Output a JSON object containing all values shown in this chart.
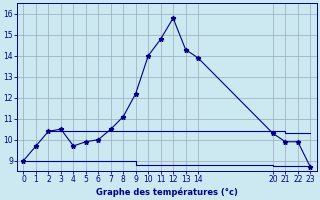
{
  "xlabel": "Graphe des températures (°c)",
  "bg_color": "#cce8f0",
  "grid_color": "#99aabb",
  "line_color": "#000088",
  "ylim": [
    8.5,
    16.5
  ],
  "xlim": [
    -0.5,
    23.5
  ],
  "yticks": [
    9,
    10,
    11,
    12,
    13,
    14,
    15,
    16
  ],
  "xticks": [
    0,
    1,
    2,
    3,
    4,
    5,
    6,
    7,
    8,
    9,
    10,
    11,
    12,
    13,
    14,
    20,
    21,
    22,
    23
  ],
  "curve_x": [
    0,
    1,
    2,
    3,
    4,
    5,
    6,
    7,
    8,
    9,
    10,
    11,
    12,
    13,
    14,
    20,
    21,
    22,
    23
  ],
  "curve_y": [
    9.0,
    9.7,
    10.4,
    10.5,
    9.7,
    9.9,
    10.0,
    10.5,
    11.1,
    12.2,
    14.0,
    14.8,
    15.8,
    14.3,
    13.9,
    10.3,
    9.9,
    9.9,
    8.7
  ],
  "mid_x": [
    2,
    3,
    9,
    14,
    20,
    21,
    22,
    23
  ],
  "mid_y": [
    10.4,
    10.4,
    10.4,
    10.4,
    10.4,
    10.3,
    10.3,
    10.3
  ],
  "low_x": [
    0,
    3,
    9,
    14,
    20,
    22,
    23
  ],
  "low_y": [
    9.0,
    9.0,
    8.8,
    8.8,
    8.75,
    8.75,
    8.7
  ]
}
